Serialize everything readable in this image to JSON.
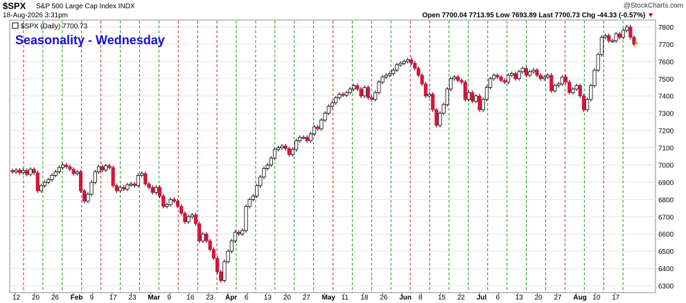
{
  "header": {
    "ticker": "$SPX",
    "name": "S&P 500 Large Cap Index",
    "exchange": "INDX",
    "date": "18-Aug-2026 3:31pm",
    "watermark": "@StockCharts.com",
    "open_label": "Open",
    "open": "7700.04",
    "high": "7713.95",
    "low_label": "Low",
    "low": "7693.89",
    "last_label": "Last",
    "last": "7700.73",
    "chg_label": "Chg",
    "chg": "-44.33 (-0.57%)",
    "chg_arrow": "▼"
  },
  "legend": {
    "label": "$SPX (Daily) 7700.73",
    "title": "Seasonality - Wednesday"
  },
  "colors": {
    "up": "#ffffff",
    "down": "#d4143c",
    "title": "#1414cc",
    "grid": "#e4e4e4",
    "green_line": "#119911",
    "red_line": "#cc2222",
    "cursor": "#e6b800"
  },
  "chart_data": {
    "type": "candlestick",
    "title": "Seasonality - Wednesday",
    "ylim": [
      6260,
      7840
    ],
    "y_ticks": [
      6300,
      6400,
      6500,
      6600,
      6700,
      6800,
      6900,
      7000,
      7100,
      7200,
      7300,
      7400,
      7500,
      7600,
      7700,
      7800
    ],
    "x_tick_labels": [
      "12",
      "20",
      "26",
      "Feb",
      "9",
      "17",
      "23",
      "Mar",
      "9",
      "16",
      "23",
      "Apr",
      "6",
      "13",
      "20",
      "27",
      "May",
      "11",
      "18",
      "26",
      "Jun",
      "8",
      "15",
      "22",
      "Jul",
      "6",
      "13",
      "20",
      "27",
      "Aug",
      "10",
      "17"
    ],
    "bold_tick_labels": [
      "Feb",
      "Mar",
      "Apr",
      "May",
      "Jun",
      "Jul",
      "Aug"
    ],
    "wednesday_lines": [
      {
        "week": 1,
        "color": "red"
      },
      {
        "week": 2,
        "color": "green"
      },
      {
        "week": 3,
        "color": "green"
      },
      {
        "week": 4,
        "color": "red"
      },
      {
        "week": 5,
        "color": "red"
      },
      {
        "week": 6,
        "color": "green"
      },
      {
        "week": 7,
        "color": "green"
      },
      {
        "week": 8,
        "color": "green"
      },
      {
        "week": 9,
        "color": "red"
      },
      {
        "week": 10,
        "color": "red"
      },
      {
        "week": 11,
        "color": "red"
      },
      {
        "week": 12,
        "color": "green"
      },
      {
        "week": 13,
        "color": "green"
      },
      {
        "week": 14,
        "color": "green"
      },
      {
        "week": 15,
        "color": "green"
      },
      {
        "week": 16,
        "color": "green"
      },
      {
        "week": 17,
        "color": "red"
      },
      {
        "week": 18,
        "color": "green"
      },
      {
        "week": 19,
        "color": "green"
      },
      {
        "week": 20,
        "color": "green"
      },
      {
        "week": 21,
        "color": "red"
      },
      {
        "week": 22,
        "color": "red"
      },
      {
        "week": 23,
        "color": "green"
      },
      {
        "week": 24,
        "color": "green"
      },
      {
        "week": 25,
        "color": "green"
      },
      {
        "week": 26,
        "color": "green"
      },
      {
        "week": 27,
        "color": "green"
      },
      {
        "week": 28,
        "color": "green"
      },
      {
        "week": 29,
        "color": "red"
      },
      {
        "week": 30,
        "color": "green"
      },
      {
        "week": 31,
        "color": "red"
      },
      {
        "week": 32,
        "color": "green"
      }
    ],
    "close": [
      6960,
      6970,
      6955,
      6968,
      6945,
      6975,
      6955,
      6850,
      6880,
      6900,
      6915,
      6940,
      6960,
      6985,
      7000,
      6990,
      6975,
      6950,
      6960,
      6850,
      6790,
      6830,
      6900,
      6960,
      6990,
      6970,
      6995,
      6985,
      6880,
      6850,
      6870,
      6860,
      6885,
      6890,
      6880,
      6940,
      6950,
      6890,
      6870,
      6840,
      6870,
      6820,
      6760,
      6770,
      6800,
      6790,
      6760,
      6720,
      6670,
      6700,
      6710,
      6660,
      6560,
      6600,
      6560,
      6510,
      6460,
      6380,
      6330,
      6440,
      6500,
      6560,
      6610,
      6600,
      6620,
      6760,
      6800,
      6820,
      6880,
      6930,
      6980,
      7000,
      7040,
      7090,
      7100,
      7110,
      7095,
      7060,
      7090,
      7140,
      7160,
      7160,
      7140,
      7180,
      7220,
      7210,
      7260,
      7300,
      7340,
      7360,
      7390,
      7410,
      7405,
      7420,
      7440,
      7460,
      7440,
      7400,
      7450,
      7390,
      7380,
      7420,
      7480,
      7510,
      7520,
      7530,
      7550,
      7580,
      7590,
      7600,
      7610,
      7590,
      7560,
      7520,
      7470,
      7400,
      7410,
      7320,
      7230,
      7300,
      7350,
      7440,
      7500,
      7510,
      7490,
      7480,
      7380,
      7420,
      7370,
      7400,
      7320,
      7380,
      7450,
      7500,
      7520,
      7510,
      7490,
      7480,
      7520,
      7530,
      7500,
      7540,
      7560,
      7520,
      7540,
      7550,
      7520,
      7500,
      7510,
      7520,
      7430,
      7460,
      7470,
      7510,
      7480,
      7420,
      7440,
      7460,
      7400,
      7320,
      7380,
      7460,
      7550,
      7640,
      7740,
      7750,
      7720,
      7720,
      7760,
      7740,
      7780,
      7800,
      7740,
      7700
    ]
  }
}
